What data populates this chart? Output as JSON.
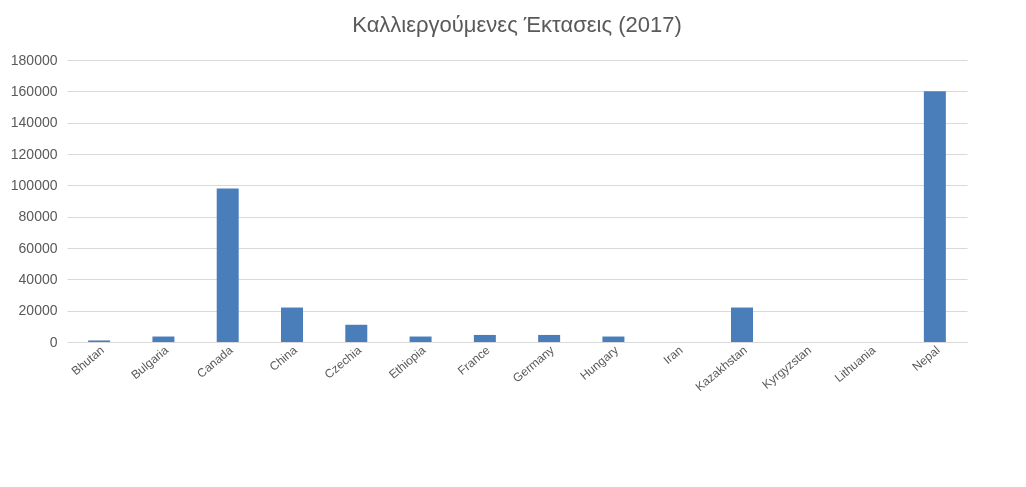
{
  "chart_data": {
    "type": "bar",
    "title": "Καλλιεργούμενες Έκτασεις (2017)",
    "categories": [
      "Bhutan",
      "Bulgaria",
      "Canada",
      "China",
      "Czechia",
      "Ethiopia",
      "France",
      "Germany",
      "Hungary",
      "Iran",
      "Kazakhstan",
      "Kyrgyzstan",
      "Lithuania",
      "Nepal"
    ],
    "values": [
      1000,
      3500,
      98000,
      22000,
      11000,
      3500,
      4500,
      4500,
      3500,
      0,
      22000,
      0,
      0,
      160000
    ],
    "color": "#4a7ebb",
    "ylim": [
      0,
      180000
    ],
    "yticks": [
      0,
      20000,
      40000,
      60000,
      80000,
      100000,
      120000,
      140000,
      160000,
      180000
    ],
    "grid": "y"
  }
}
